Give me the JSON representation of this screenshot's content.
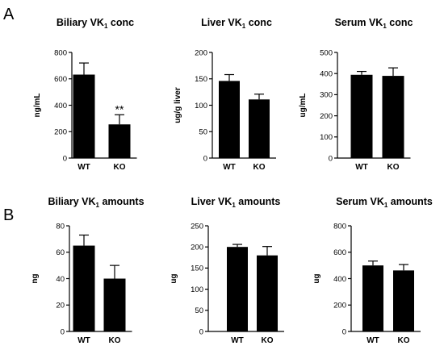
{
  "panel_labels": [
    "A",
    "B"
  ],
  "chart_data": [
    {
      "type": "bar",
      "panel": "A",
      "title": "Biliary VK",
      "title_sub": "1",
      "title_suffix": " conc",
      "ylabel": "ng/mL",
      "categories": [
        "WT",
        "KO"
      ],
      "values": [
        632,
        255
      ],
      "errors": [
        88,
        73
      ],
      "ylim": [
        0,
        800
      ],
      "yticks": [
        0,
        200,
        400,
        600,
        800
      ],
      "annotations": [
        {
          "category": "KO",
          "text": "**"
        }
      ]
    },
    {
      "type": "bar",
      "panel": "A",
      "title": "Liver VK",
      "title_sub": "1",
      "title_suffix": " conc",
      "ylabel": "ug/g liver",
      "categories": [
        "WT",
        "KO"
      ],
      "values": [
        146,
        111
      ],
      "errors": [
        12,
        10
      ],
      "ylim": [
        0,
        200
      ],
      "yticks": [
        0,
        50,
        100,
        150,
        200
      ],
      "annotations": []
    },
    {
      "type": "bar",
      "panel": "A",
      "title": "Serum VK",
      "title_sub": "1",
      "title_suffix": " conc",
      "ylabel": "ug/mL",
      "categories": [
        "WT",
        "KO"
      ],
      "values": [
        394,
        389
      ],
      "errors": [
        16,
        38
      ],
      "ylim": [
        0,
        500
      ],
      "yticks": [
        0,
        100,
        200,
        300,
        400,
        500
      ],
      "annotations": []
    },
    {
      "type": "bar",
      "panel": "B",
      "title": "Biliary VK",
      "title_sub": "1",
      "title_suffix": " amounts",
      "ylabel": "ng",
      "categories": [
        "WT",
        "KO"
      ],
      "values": [
        65,
        40
      ],
      "errors": [
        8,
        10
      ],
      "ylim": [
        0,
        80
      ],
      "yticks": [
        0,
        20,
        40,
        60,
        80
      ],
      "annotations": []
    },
    {
      "type": "bar",
      "panel": "B",
      "title": "Liver VK",
      "title_sub": "1",
      "title_suffix": " amounts",
      "ylabel": "ug",
      "categories": [
        "WT",
        "KO"
      ],
      "values": [
        200,
        180
      ],
      "errors": [
        6,
        21
      ],
      "ylim": [
        0,
        250
      ],
      "yticks": [
        0,
        50,
        100,
        150,
        200,
        250
      ],
      "annotations": []
    },
    {
      "type": "bar",
      "panel": "B",
      "title": "Serum VK",
      "title_sub": "1",
      "title_suffix": " amounts",
      "ylabel": "ug",
      "categories": [
        "WT",
        "KO"
      ],
      "values": [
        500,
        462
      ],
      "errors": [
        33,
        45
      ],
      "ylim": [
        0,
        800
      ],
      "yticks": [
        0,
        200,
        400,
        600,
        800
      ],
      "annotations": []
    }
  ]
}
